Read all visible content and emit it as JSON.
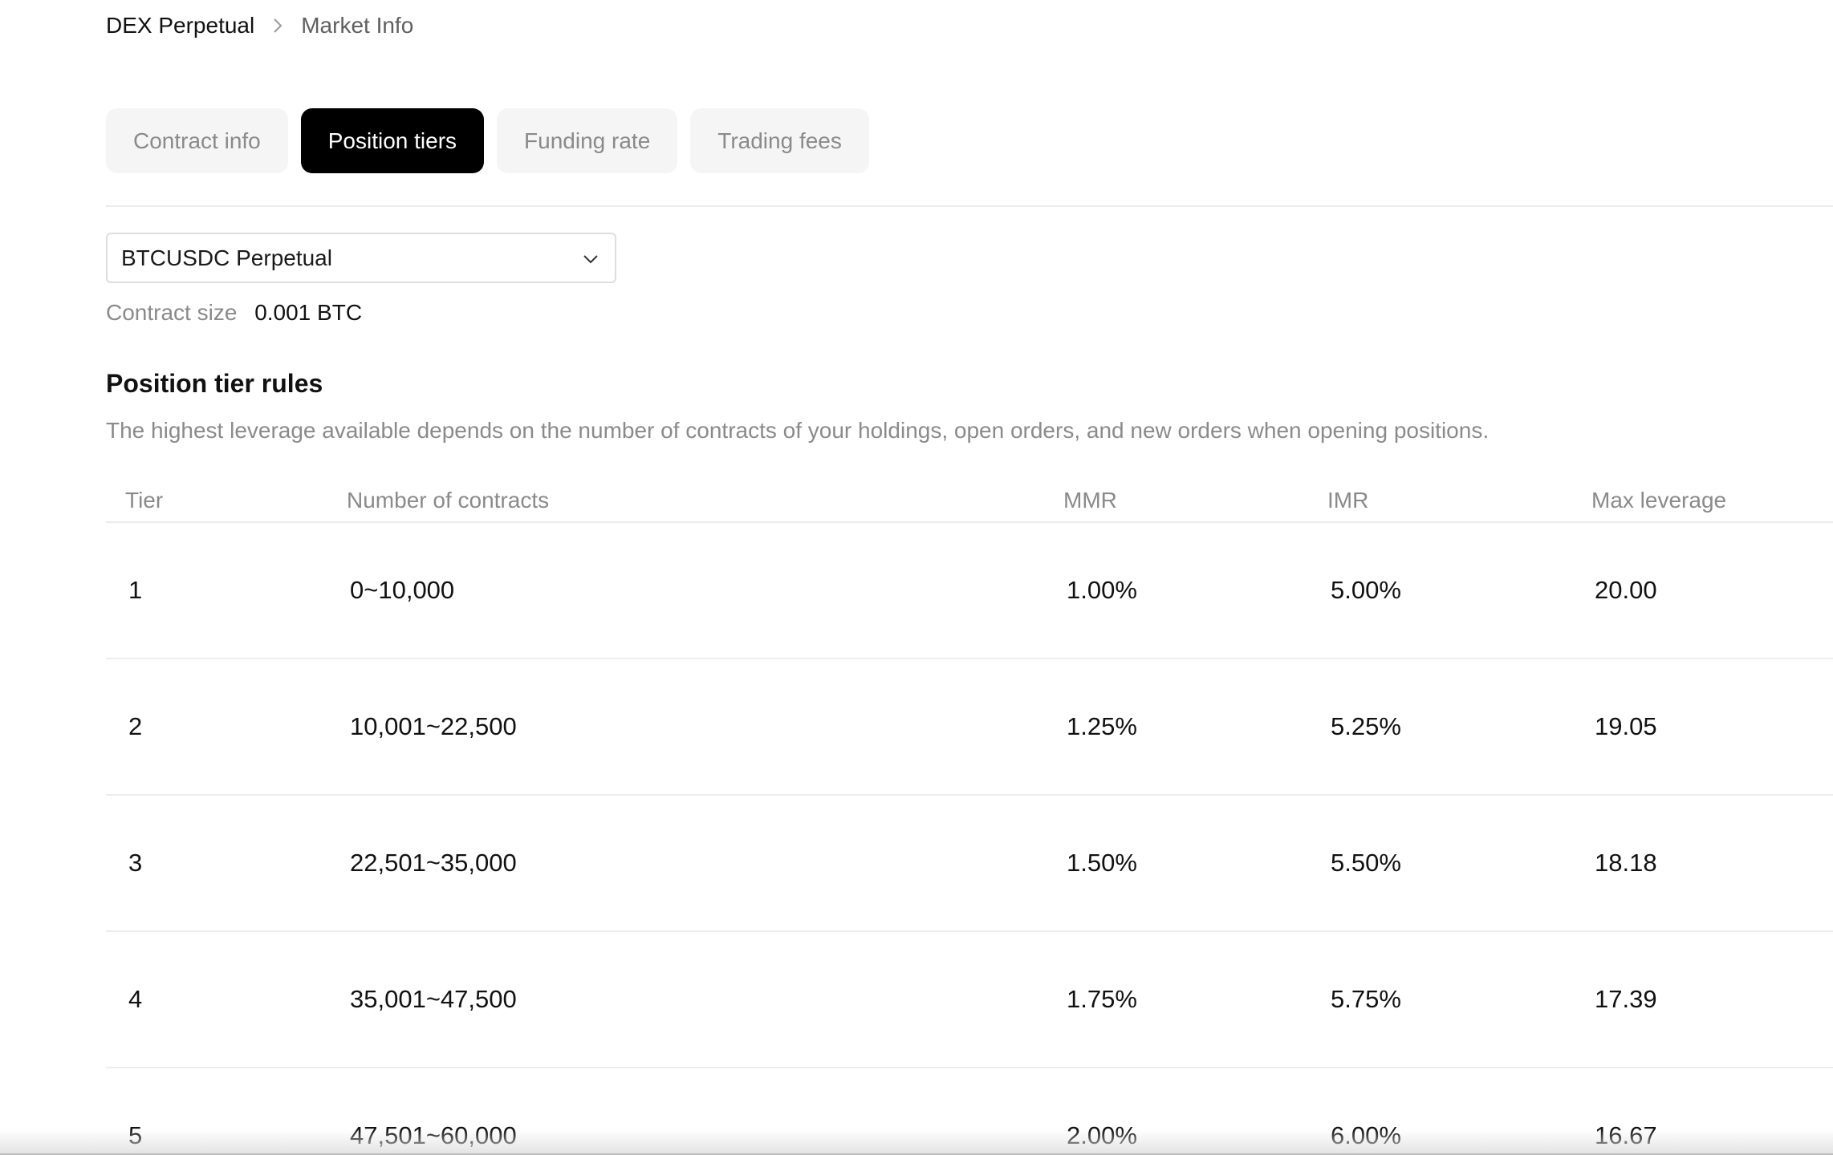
{
  "breadcrumb": {
    "root": "DEX Perpetual",
    "separator_icon": "chevron-right-icon",
    "current": "Market Info"
  },
  "tabs": [
    {
      "label": "Contract info",
      "active": false
    },
    {
      "label": "Position tiers",
      "active": true
    },
    {
      "label": "Funding rate",
      "active": false
    },
    {
      "label": "Trading fees",
      "active": false
    }
  ],
  "instrument_select": {
    "value": "BTCUSDC Perpetual",
    "icon": "chevron-down-icon"
  },
  "contract_size": {
    "label": "Contract size",
    "value": "0.001 BTC"
  },
  "tier_rules": {
    "title": "Position tier rules",
    "description": "The highest leverage available depends on the number of contracts of your holdings, open orders, and new orders when opening positions.",
    "columns": {
      "tier": "Tier",
      "contracts": "Number of contracts",
      "mmr": "MMR",
      "imr": "IMR",
      "max_leverage": "Max leverage"
    },
    "rows": [
      {
        "tier": "1",
        "contracts": "0~10,000",
        "mmr": "1.00%",
        "imr": "5.00%",
        "max_leverage": "20.00"
      },
      {
        "tier": "2",
        "contracts": "10,001~22,500",
        "mmr": "1.25%",
        "imr": "5.25%",
        "max_leverage": "19.05"
      },
      {
        "tier": "3",
        "contracts": "22,501~35,000",
        "mmr": "1.50%",
        "imr": "5.50%",
        "max_leverage": "18.18"
      },
      {
        "tier": "4",
        "contracts": "35,001~47,500",
        "mmr": "1.75%",
        "imr": "5.75%",
        "max_leverage": "17.39"
      },
      {
        "tier": "5",
        "contracts": "47,501~60,000",
        "mmr": "2.00%",
        "imr": "6.00%",
        "max_leverage": "16.67"
      }
    ]
  },
  "colors": {
    "active_tab_bg": "#000000",
    "inactive_tab_bg": "#f5f5f5",
    "muted_text": "#8a8a8a",
    "divider": "#ececec"
  }
}
